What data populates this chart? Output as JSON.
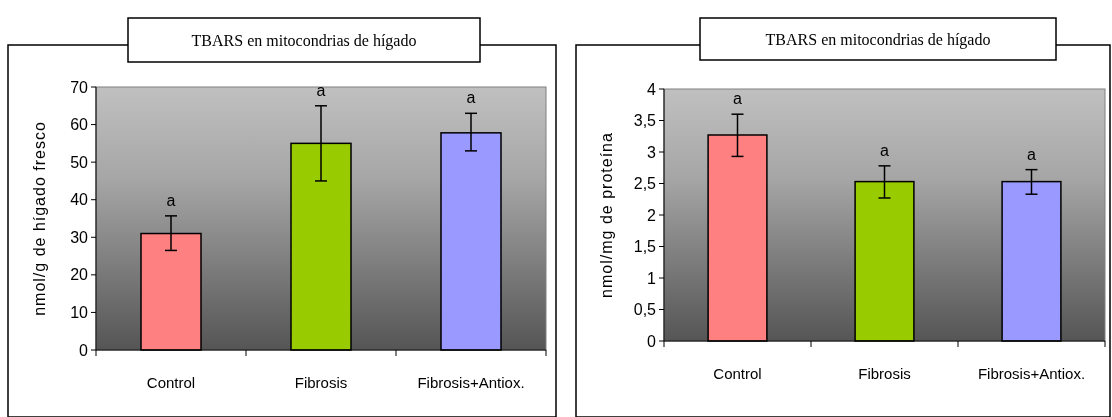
{
  "chart_data": [
    {
      "type": "bar",
      "title": "TBARS en mitocondrias de hígado",
      "ylabel": "nmol/g de hígado fresco",
      "categories": [
        "Control",
        "Fibrosis",
        "Fibrosis+Antiox."
      ],
      "values": [
        31,
        55,
        57.8
      ],
      "colors": [
        "#ff8080",
        "#99cc00",
        "#9999ff"
      ],
      "errors": [
        [
          26.5,
          35.7
        ],
        [
          45,
          65
        ],
        [
          53,
          63
        ]
      ],
      "ylim": [
        0,
        70
      ],
      "yticks": [
        0,
        10,
        20,
        30,
        40,
        50,
        60,
        70
      ],
      "grid": false,
      "annotations": [
        {
          "text": "a",
          "x": "Control",
          "y": 35.7
        },
        {
          "text": "a",
          "x": "Fibrosis",
          "y": 65
        },
        {
          "text": "a",
          "x": "Fibrosis+Antiox.",
          "y": 63
        }
      ]
    },
    {
      "type": "bar",
      "title": "TBARS en mitocondrias de hígado",
      "ylabel": "nmol/mg de proteína",
      "categories": [
        "Control",
        "Fibrosis",
        "Fibrosis+Antiox."
      ],
      "values": [
        3.27,
        2.53,
        2.53
      ],
      "colors": [
        "#ff8080",
        "#99cc00",
        "#9999ff"
      ],
      "errors": [
        [
          2.93,
          3.6
        ],
        [
          2.27,
          2.78
        ],
        [
          2.33,
          2.72
        ]
      ],
      "ylim": [
        0,
        4
      ],
      "yticks": [
        0,
        {
          "value": 0.5,
          "label": "0,5"
        },
        1,
        {
          "value": 1.5,
          "label": "1,5"
        },
        2,
        {
          "value": 2.5,
          "label": "2,5"
        },
        3,
        {
          "value": 3.5,
          "label": "3,5"
        },
        4
      ],
      "grid": false,
      "annotations": [
        {
          "text": "a",
          "x": "Control",
          "y": 3.6
        },
        {
          "text": "a",
          "x": "Fibrosis",
          "y": 2.78
        },
        {
          "text": "a",
          "x": "Fibrosis+Antiox.",
          "y": 2.72
        }
      ]
    }
  ]
}
